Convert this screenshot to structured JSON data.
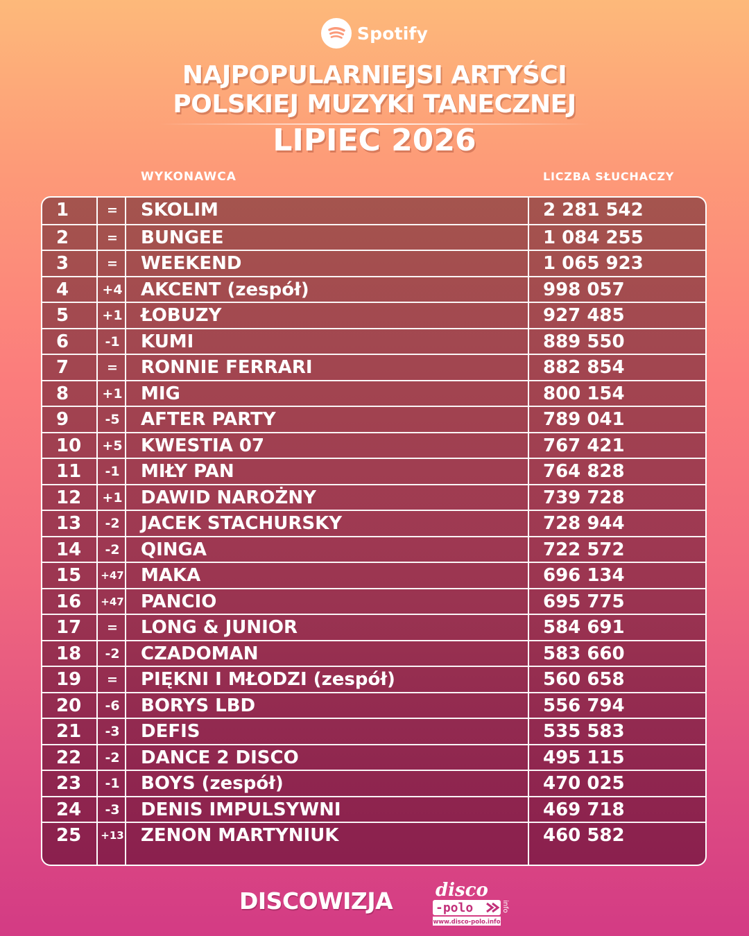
{
  "header": {
    "brand": "Spotify",
    "title_line1": "NAJPOPULARNIEJSI ARTYŚCI",
    "title_line2": "POLSKIEJ MUZYKI TANECZNEJ",
    "subtitle": "LIPIEC 2026"
  },
  "columns": {
    "artist": "WYKONAWCA",
    "listeners": "LICZBA SŁUCHACZY"
  },
  "rows": [
    {
      "rank": "1",
      "change": "=",
      "artist": "SKOLIM",
      "listeners": "2 281 542"
    },
    {
      "rank": "2",
      "change": "=",
      "artist": "BUNGEE",
      "listeners": "1 084 255"
    },
    {
      "rank": "3",
      "change": "=",
      "artist": "WEEKEND",
      "listeners": "1 065 923"
    },
    {
      "rank": "4",
      "change": "+4",
      "artist": "AKCENT (zespół)",
      "listeners": "998 057"
    },
    {
      "rank": "5",
      "change": "+1",
      "artist": "ŁOBUZY",
      "listeners": "927 485"
    },
    {
      "rank": "6",
      "change": "-1",
      "artist": "KUMI",
      "listeners": "889 550"
    },
    {
      "rank": "7",
      "change": "=",
      "artist": "RONNIE FERRARI",
      "listeners": "882 854"
    },
    {
      "rank": "8",
      "change": "+1",
      "artist": "MIG",
      "listeners": "800 154"
    },
    {
      "rank": "9",
      "change": "-5",
      "artist": "AFTER PARTY",
      "listeners": "789 041"
    },
    {
      "rank": "10",
      "change": "+5",
      "artist": "KWESTIA 07",
      "listeners": "767 421"
    },
    {
      "rank": "11",
      "change": "-1",
      "artist": "MIŁY PAN",
      "listeners": "764 828"
    },
    {
      "rank": "12",
      "change": "+1",
      "artist": "DAWID NAROŻNY",
      "listeners": "739 728"
    },
    {
      "rank": "13",
      "change": "-2",
      "artist": "JACEK STACHURSKY",
      "listeners": "728 944"
    },
    {
      "rank": "14",
      "change": "-2",
      "artist": "QINGA",
      "listeners": "722 572"
    },
    {
      "rank": "15",
      "change": "+47",
      "artist": "MAKA",
      "listeners": "696 134"
    },
    {
      "rank": "16",
      "change": "+47",
      "artist": "PANCIO",
      "listeners": "695 775"
    },
    {
      "rank": "17",
      "change": "=",
      "artist": "LONG & JUNIOR",
      "listeners": "584 691"
    },
    {
      "rank": "18",
      "change": "-2",
      "artist": "CZADOMAN",
      "listeners": "583 660"
    },
    {
      "rank": "19",
      "change": "=",
      "artist": "PIĘKNI I MŁODZI (zespół)",
      "listeners": "560 658"
    },
    {
      "rank": "20",
      "change": "-6",
      "artist": "BORYS LBD",
      "listeners": "556 794"
    },
    {
      "rank": "21",
      "change": "-3",
      "artist": "DEFIS",
      "listeners": "535 583"
    },
    {
      "rank": "22",
      "change": "-2",
      "artist": "DANCE 2 DISCO",
      "listeners": "495 115"
    },
    {
      "rank": "23",
      "change": "-1",
      "artist": "BOYS (zespół)",
      "listeners": "470 025"
    },
    {
      "rank": "24",
      "change": "-3",
      "artist": "DENIS IMPULSYWNI",
      "listeners": "469 718"
    },
    {
      "rank": "25",
      "change": "+13",
      "artist": "ZENON MARTYNIUK",
      "listeners": "460 582"
    }
  ],
  "footer": {
    "brand": "DISCOWIZJA",
    "partner_logo_word1": "disco",
    "partner_logo_word2": "-polo",
    "partner_logo_suffix": "info",
    "partner_url": "www.disco-polo.info"
  },
  "colors": {
    "gradient_top": "#fdb97a",
    "gradient_middle": "#fb7d7c",
    "gradient_bottom": "#d33b84",
    "table_fill": "#8c4248",
    "text": "#ffffff"
  },
  "icons": [
    "spotify-icon",
    "disco-polo-logo"
  ]
}
